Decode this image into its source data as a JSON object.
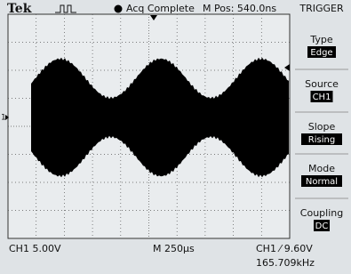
{
  "header": {
    "brand": "Tek",
    "status": "Acq Complete",
    "position": "M Pos: 540.0ns"
  },
  "menu": {
    "title": "TRIGGER",
    "items": [
      {
        "label": "Type",
        "value": "Edge"
      },
      {
        "label": "Source",
        "value": "CH1"
      },
      {
        "label": "Slope",
        "value": "Rising"
      },
      {
        "label": "Mode",
        "value": "Normal"
      },
      {
        "label": "Coupling",
        "value": "DC"
      }
    ]
  },
  "channel_marker": "1",
  "footer": {
    "channel": "CH1 5.00V",
    "timebase": "M 250µs",
    "trigger": "CH1 ⁄ 9.60V",
    "frequency": "165.709kHz"
  }
}
